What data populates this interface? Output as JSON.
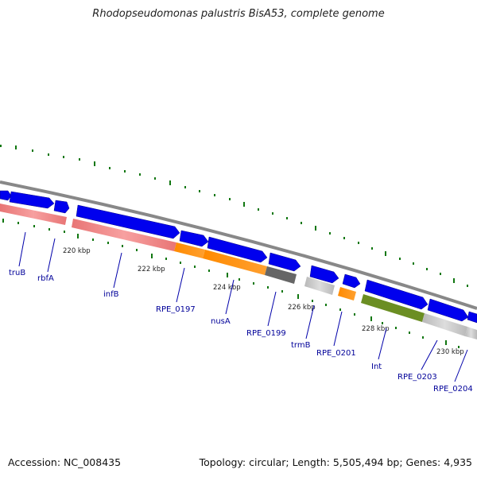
{
  "title": "Rhodopseudomonas palustris BisA53, complete genome",
  "footer": {
    "accession": "Accession: NC_008435",
    "topology": "Topology: circular; Length: 5,505,494 bp; Genes: 4,935"
  },
  "colors": {
    "gene_arrow": "#0000ee",
    "backbone": "#888888",
    "tick": "#117711",
    "label": "#000099",
    "feature_pink": "#f08888",
    "feature_orange": "#ff8c00",
    "feature_darkgray": "#666666",
    "feature_lightgray": "#c0c0c0",
    "feature_olive": "#6b8e23"
  },
  "scale_labels": [
    "220 kbp",
    "222 kbp",
    "224 kbp",
    "226 kbp",
    "228 kbp",
    "230 kbp"
  ],
  "scale_positions_kbp": [
    220,
    222,
    224,
    226,
    228,
    230
  ],
  "gene_labels": [
    "truB",
    "rbfA",
    "infB",
    "RPE_0197",
    "nusA",
    "RPE_0199",
    "trmB",
    "RPE_0201",
    "Int",
    "RPE_0203",
    "RPE_0204"
  ]
}
